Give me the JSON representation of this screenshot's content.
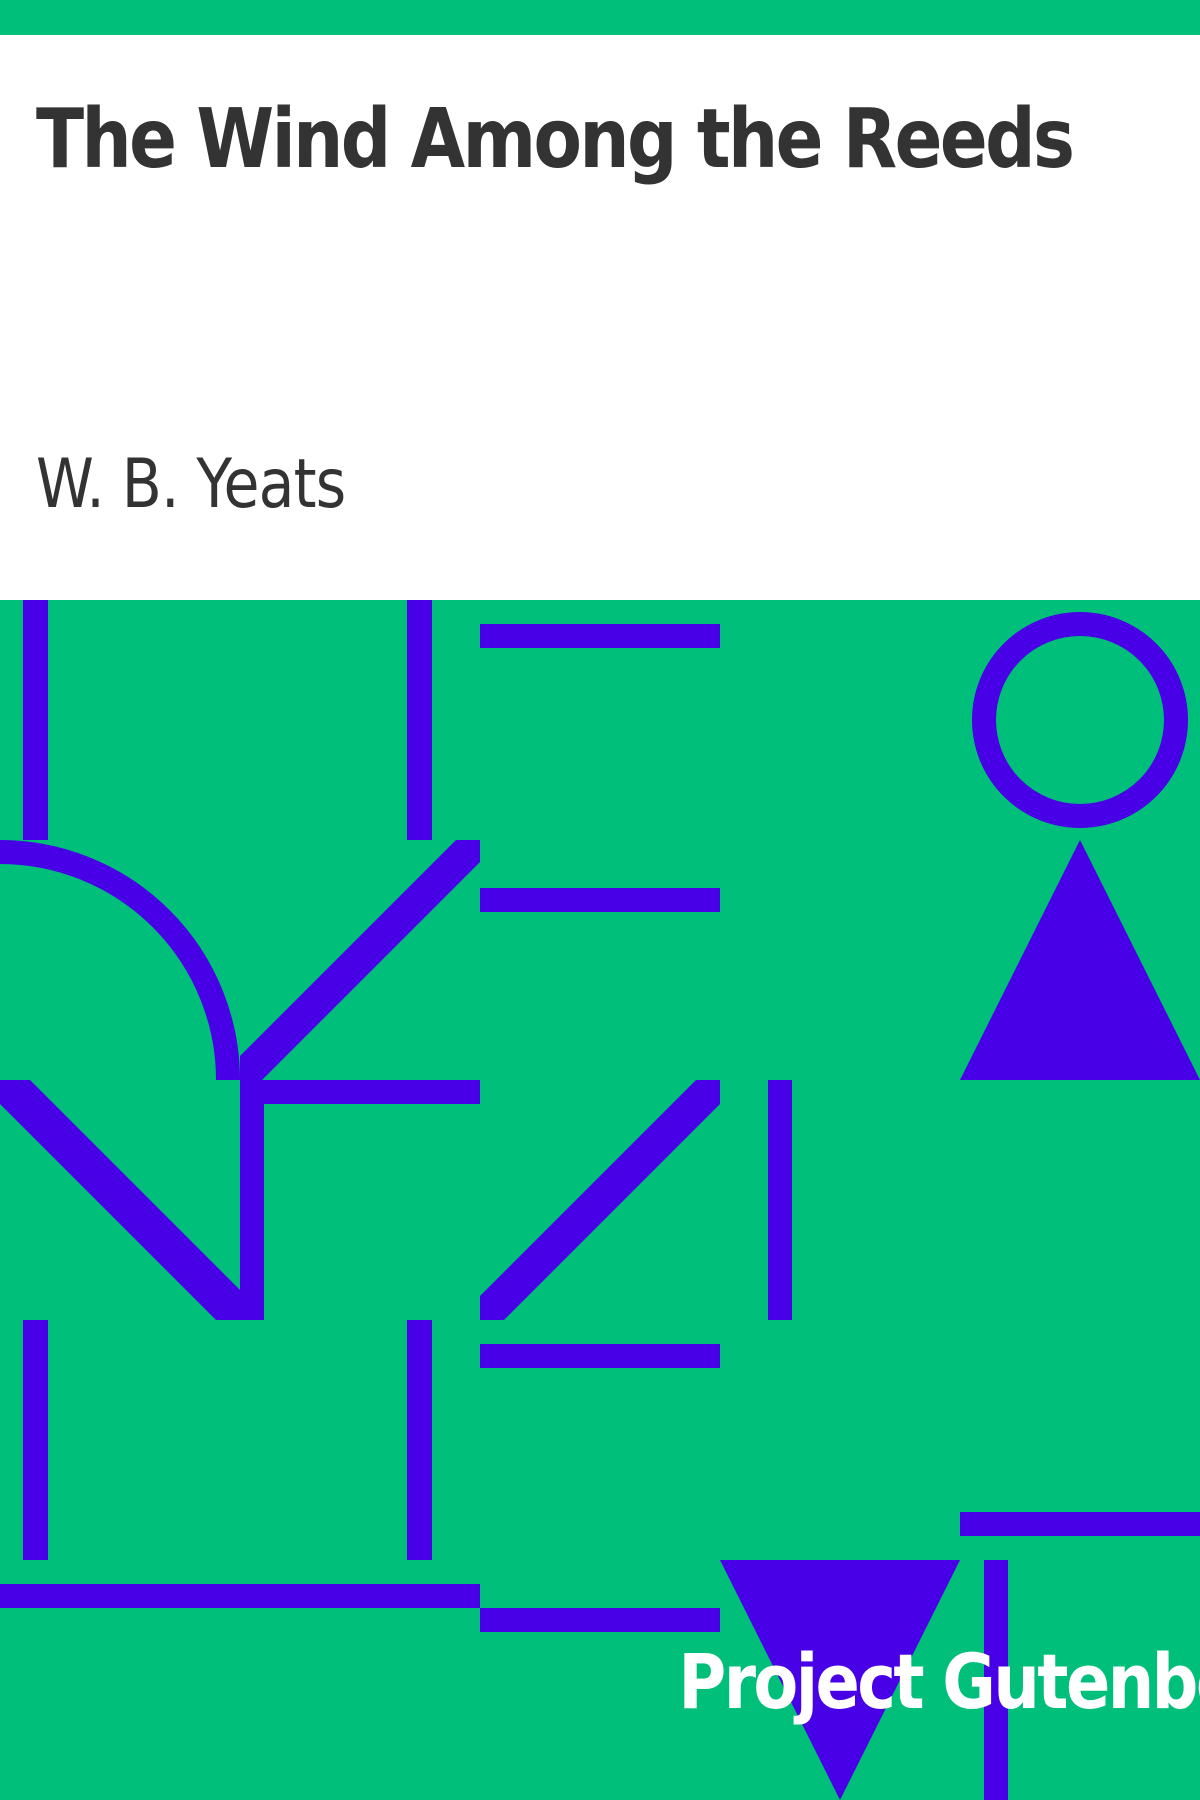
{
  "book": {
    "title": "The Wind Among the Reeds",
    "author": "W. B. Yeats",
    "publisher": "Project Gutenberg"
  },
  "colors": {
    "background": "#ffffff",
    "band": "#00bf7a",
    "pattern": "#4800e6",
    "title_text": "#333333",
    "publisher_text": "#ffffff"
  },
  "icons": {
    "pattern": "geometric-pattern-art"
  }
}
